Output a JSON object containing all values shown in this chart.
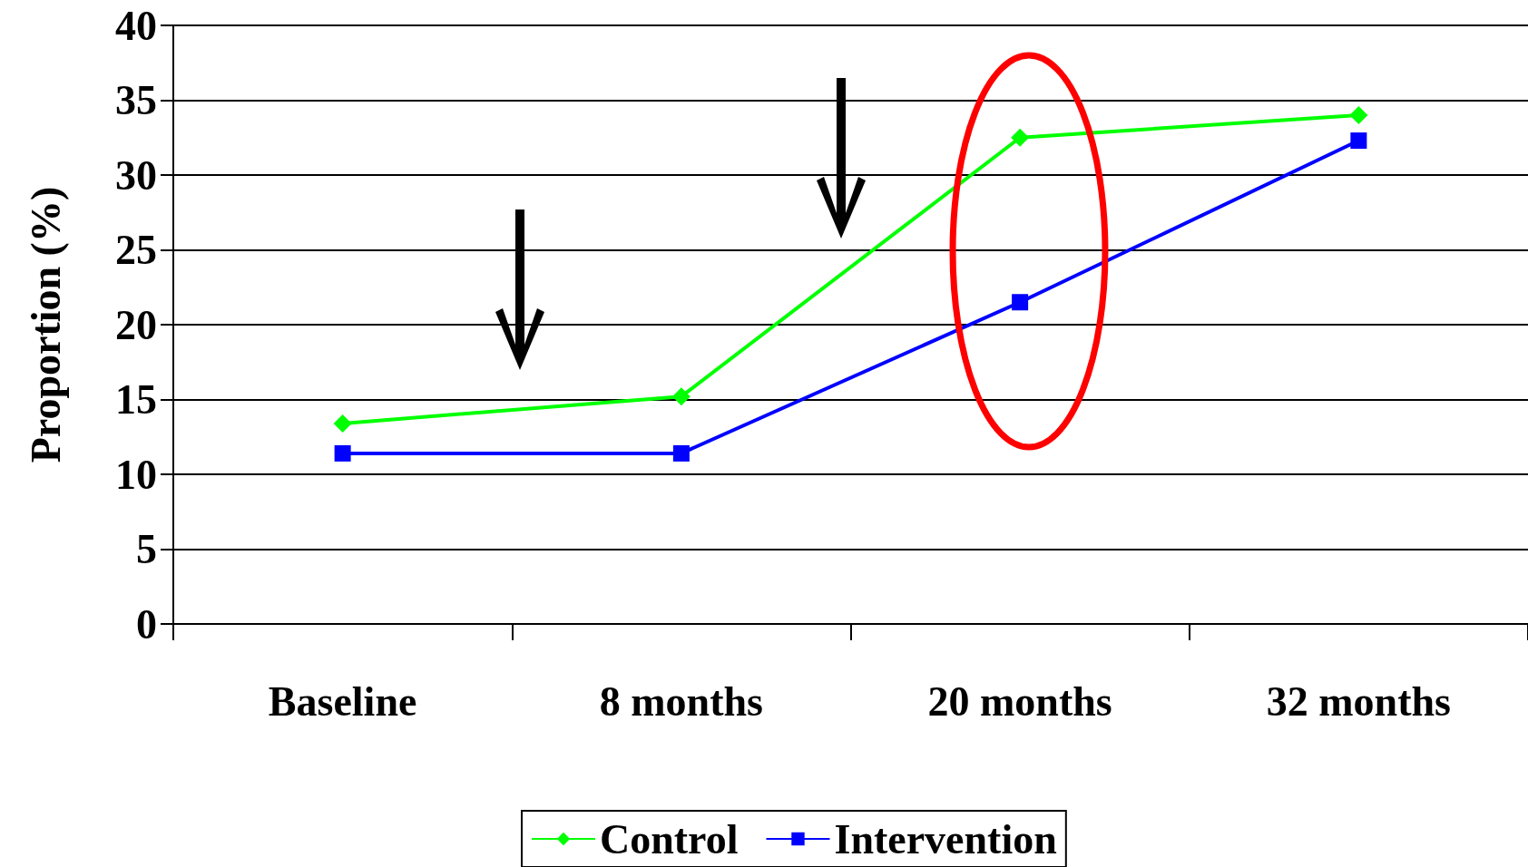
{
  "chart_data": {
    "type": "line",
    "ylabel": "Proportion (%)",
    "categories": [
      "Baseline",
      "8 months",
      "20 months",
      "32 months"
    ],
    "series": [
      {
        "name": "Control",
        "color": "#00ff00",
        "marker": "diamond",
        "values": [
          13.4,
          15.2,
          32.5,
          34.0
        ]
      },
      {
        "name": "Intervention",
        "color": "#0000ff",
        "marker": "square",
        "values": [
          11.4,
          11.4,
          21.5,
          32.3
        ]
      }
    ],
    "ylim": [
      0,
      40
    ],
    "yticks": [
      0,
      5,
      10,
      15,
      20,
      25,
      30,
      35,
      40
    ],
    "grid": "y",
    "legend": "bottom",
    "line_style": "solid"
  }
}
